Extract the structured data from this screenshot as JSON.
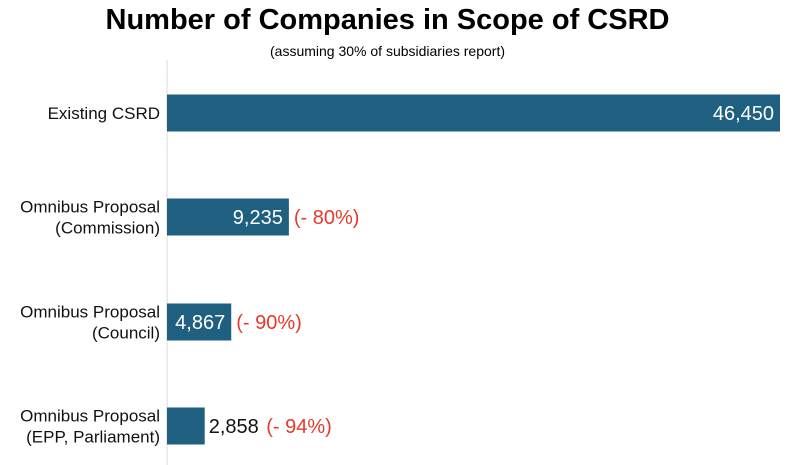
{
  "chart_data": {
    "type": "bar",
    "orientation": "horizontal",
    "title": "Number of Companies in Scope of CSRD",
    "subtitle": "(assuming 30% of subsidiaries report)",
    "categories": [
      [
        "Existing CSRD"
      ],
      [
        "Omnibus Proposal",
        "(Commission)"
      ],
      [
        "Omnibus Proposal",
        "(Council)"
      ],
      [
        "Omnibus Proposal",
        "(EPP, Parliament)"
      ]
    ],
    "values": [
      46450,
      9235,
      4867,
      2858
    ],
    "value_labels": [
      "46,450",
      "9,235",
      "4,867",
      "2,858"
    ],
    "change_labels": [
      "",
      "(- 80%)",
      "(- 90%)",
      "(- 94%)"
    ],
    "xlim": [
      0,
      46450
    ],
    "grid": false,
    "legend": "none"
  },
  "colors": {
    "bar": "#1f5f80",
    "change": "#e8392b",
    "axis": "#d9d9d9"
  }
}
